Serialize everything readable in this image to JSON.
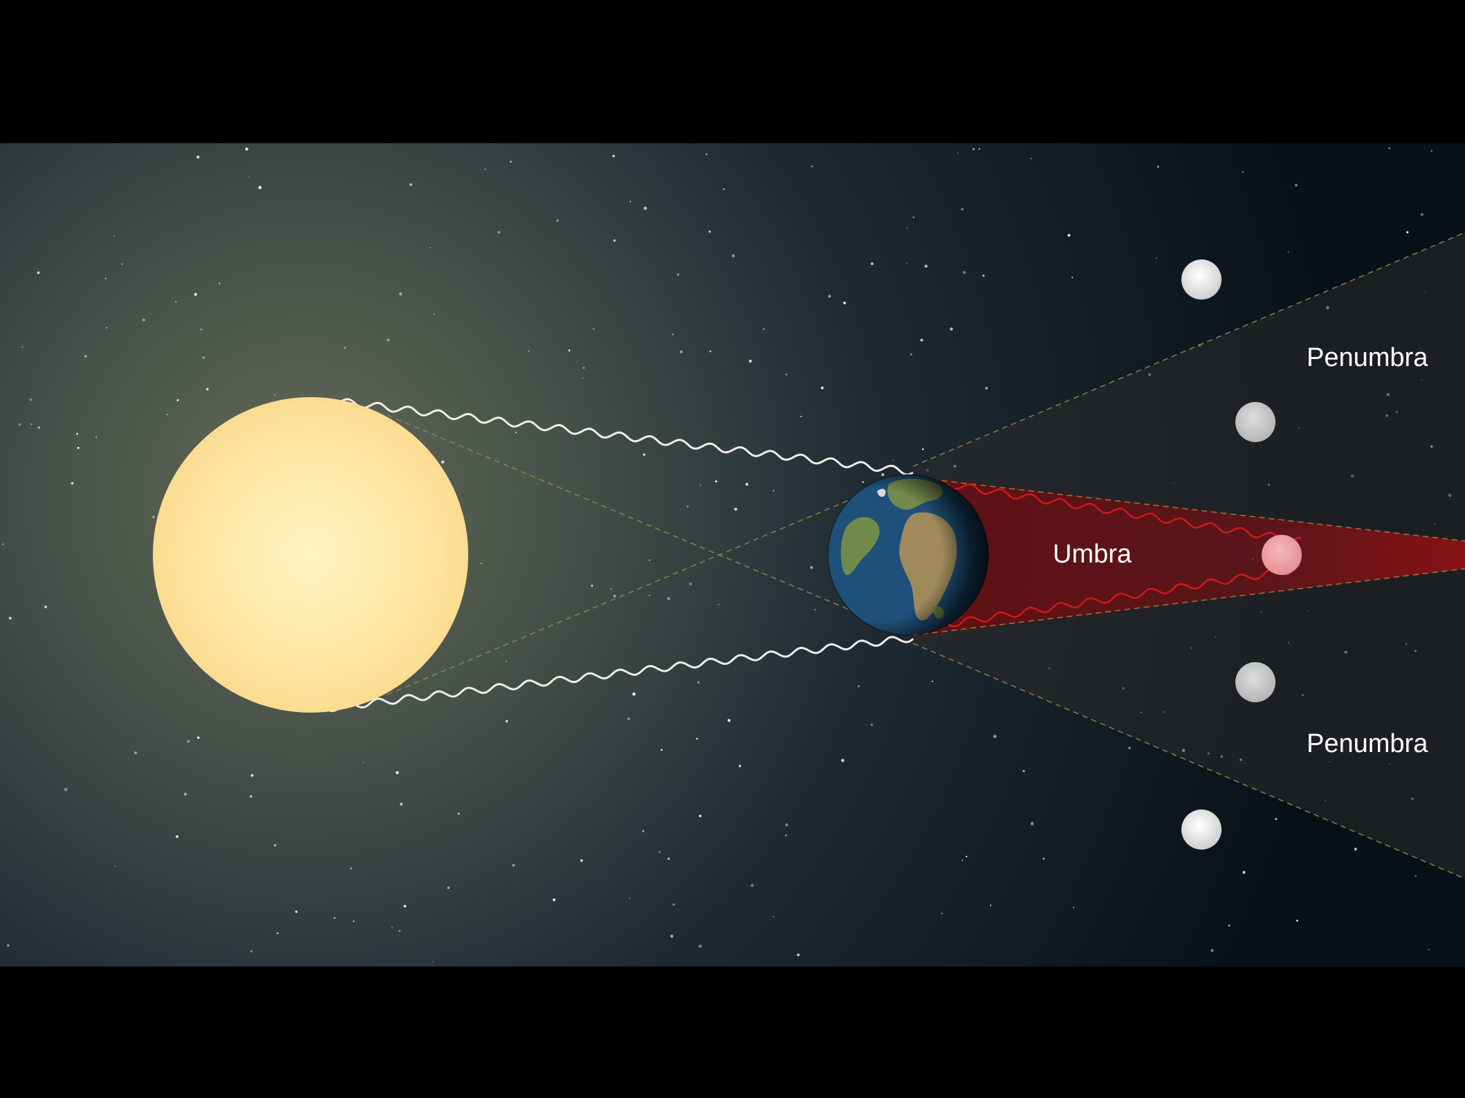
{
  "labels": {
    "umbra": "Umbra",
    "penumbra_top": "Penumbra",
    "penumbra_bottom": "Penumbra"
  },
  "colors": {
    "background": "#000000",
    "space_dark": "#0b121a",
    "space_glow": "#5a6150",
    "sun": "#fde39a",
    "sun_core": "#fff3c0",
    "umbra": "#8a1212",
    "penumbra": "#2a2a2a",
    "ray": "#f2ece4",
    "ray_red": "#d11a1a",
    "ocean": "#1f4f7a",
    "land": "#6e8a4a",
    "moon": "#e6e6e6",
    "moon_eclipsed": "#f0a6a8",
    "guide_line": "#8a8a3a"
  },
  "icons": {
    "sun": "sun-icon",
    "earth": "earth-icon",
    "moon": "moon-icon"
  }
}
